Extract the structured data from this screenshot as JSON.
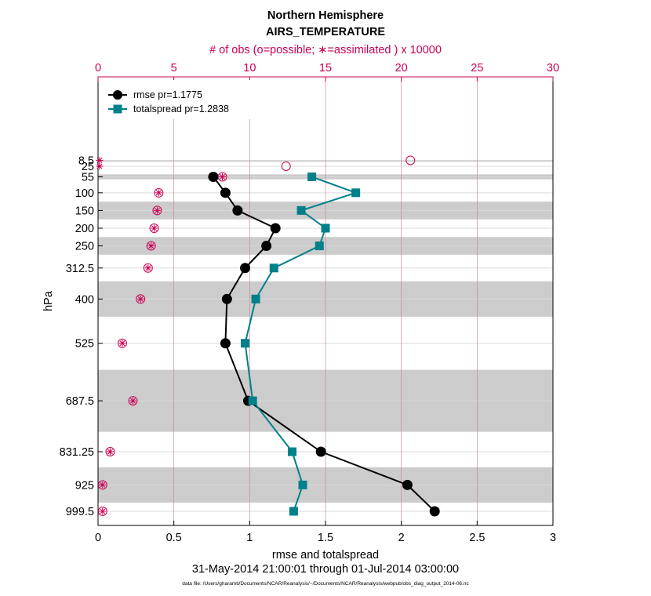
{
  "chart_data": {
    "type": "line",
    "title": "Northern Hemisphere",
    "subtitle": "AIRS_TEMPERATURE",
    "top_axis_label": "# of obs (o=possible; ∗=assimilated ) x 10000",
    "xlabel": "rmse and totalspread",
    "ylabel": "hPa",
    "time_range": "31-May-2014 21:00:01 through 01-Jul-2014 03:00:00",
    "footnote": "data file: /Users/gharamti/Documents/NCAR/Reanalysis/~/Documents/NCAR/Reanalysis/webpub/obs_diag_output_2014-06.nc",
    "xlim": [
      0,
      3
    ],
    "x_ticks": [
      "0",
      "0.5",
      "1",
      "1.5",
      "2",
      "2.5",
      "3"
    ],
    "top_xlim": [
      0,
      30
    ],
    "top_ticks": [
      "0",
      "5",
      "10",
      "15",
      "20",
      "25",
      "30"
    ],
    "levels": [
      8.5,
      25,
      55,
      100,
      150,
      200,
      250,
      312.5,
      400,
      525,
      687.5,
      831.25,
      925,
      999.5
    ],
    "level_labels": [
      "8.5",
      "25",
      "55",
      "100",
      "150",
      "200",
      "250",
      "312.5",
      "400",
      "525",
      "687.5",
      "831.25",
      "925",
      "999.5"
    ],
    "bands": [
      [
        8,
        9
      ],
      [
        48,
        62
      ],
      [
        125,
        175
      ],
      [
        225,
        275
      ],
      [
        350,
        450
      ],
      [
        600,
        775
      ],
      [
        875,
        975
      ]
    ],
    "series": [
      {
        "name": "rmse",
        "label": "rmse pr=1.1775",
        "color": "#000000",
        "marker": "circle",
        "levels": [
          55,
          100,
          150,
          200,
          250,
          312.5,
          400,
          525,
          687.5,
          831.25,
          925,
          999.5
        ],
        "values": [
          0.76,
          0.84,
          0.92,
          1.17,
          1.11,
          0.97,
          0.85,
          0.84,
          0.99,
          1.47,
          2.04,
          2.22
        ]
      },
      {
        "name": "totalspread",
        "label": "totalspread pr=1.2838",
        "color": "#00808a",
        "marker": "square",
        "levels": [
          55,
          100,
          150,
          200,
          250,
          312.5,
          400,
          525,
          687.5,
          831.25,
          925,
          999.5
        ],
        "values": [
          1.41,
          1.7,
          1.34,
          1.5,
          1.46,
          1.16,
          1.04,
          0.97,
          1.02,
          1.28,
          1.35,
          1.29
        ]
      }
    ],
    "obs_possible": {
      "levels": [
        8.5,
        25,
        55,
        100,
        150,
        200,
        250,
        312.5,
        400,
        525,
        687.5,
        831.25,
        925,
        999.5
      ],
      "values": [
        20.6,
        12.4,
        8.2,
        4.0,
        3.9,
        3.7,
        3.5,
        3.3,
        2.8,
        1.6,
        2.3,
        0.8,
        0.3,
        0.3
      ]
    },
    "obs_assimilated": {
      "levels": [
        8.5,
        25,
        55,
        100,
        150,
        200,
        250,
        312.5,
        400,
        525,
        687.5,
        831.25,
        925,
        999.5
      ],
      "values": [
        0.1,
        0.1,
        8.2,
        4.0,
        3.9,
        3.7,
        3.5,
        3.3,
        2.8,
        1.6,
        2.3,
        0.8,
        0.3,
        0.3
      ]
    },
    "colors": {
      "obs": "#cc0055",
      "band": "#cccccc",
      "grid": "#d9d9d9",
      "top_grid": "#cc8899"
    }
  }
}
